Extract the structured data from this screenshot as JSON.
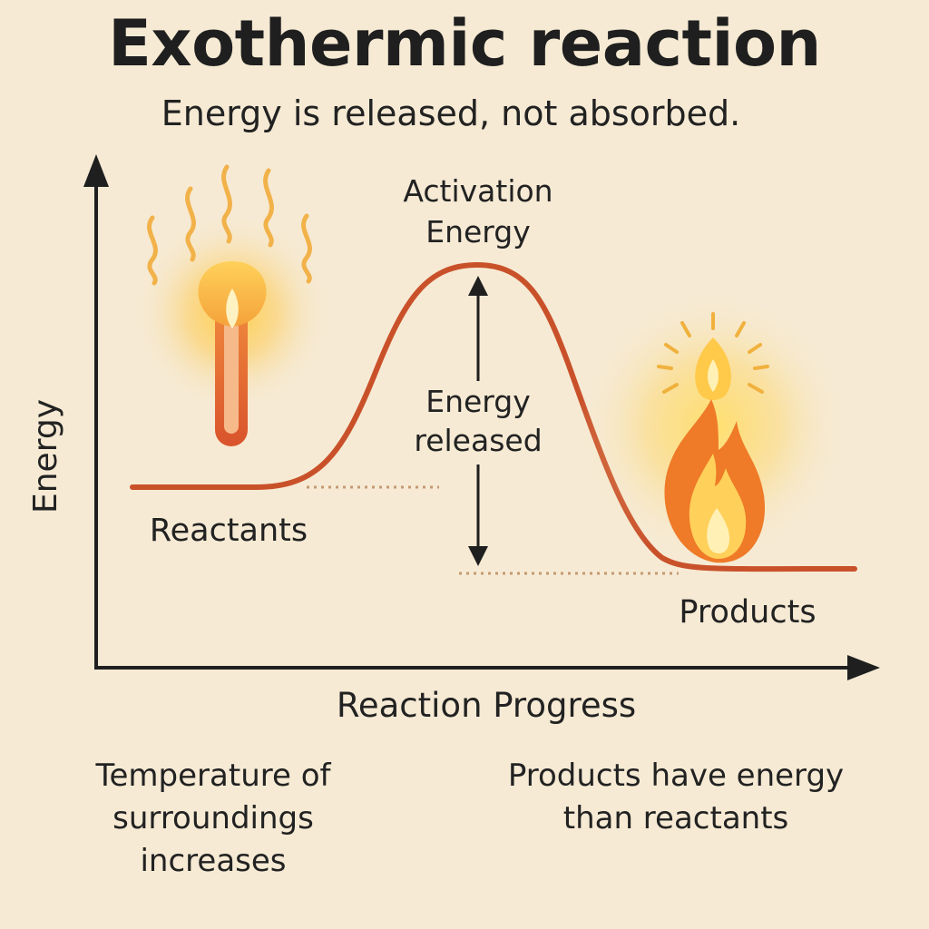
{
  "title": "Exothermic reaction",
  "subtitle": "Energy is released, not absorbed.",
  "diagram": {
    "y_axis_label": "Energy",
    "x_axis_label": "Reaction Progress",
    "peak_label_line1": "Activation",
    "peak_label_line2": "Energy",
    "arrow_label_line1": "Energy",
    "arrow_label_line2": "released",
    "reactants_label": "Reactants",
    "products_label": "Products",
    "icons": {
      "left": "heated-test-tube-icon",
      "right": "flame-icon"
    },
    "colors": {
      "curve": "#c9512a",
      "axis": "#1f1f1f",
      "dotted": "#c49a72",
      "background": "#f6ead4"
    }
  },
  "notes": {
    "left": [
      "Temperature of",
      "surroundings",
      "increases"
    ],
    "right": [
      "Products have energy",
      "than reactants"
    ]
  }
}
